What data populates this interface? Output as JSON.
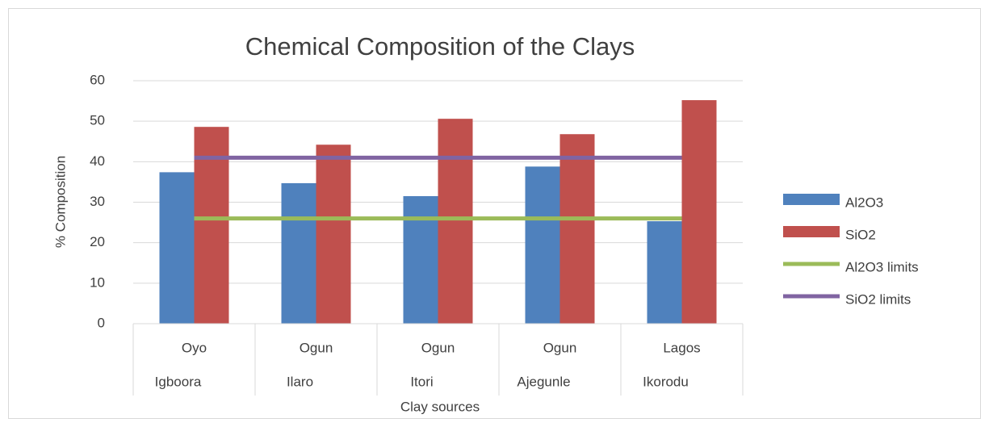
{
  "chart_data": {
    "type": "bar",
    "title": "Chemical Composition of the Clays",
    "x_label": "Clay sources",
    "y_label": "% Composition",
    "categories": [
      "Oyo",
      "Ogun",
      "Ogun",
      "Ogun",
      "Lagos"
    ],
    "subcategories": [
      "Igboora",
      "Ilaro",
      "Itori",
      "Ajegunle",
      "Ikorodu"
    ],
    "series": [
      {
        "name": "Al2O3",
        "type": "bar",
        "color": "#4f81bd",
        "values": [
          37.4,
          34.7,
          31.5,
          38.8,
          25.3
        ]
      },
      {
        "name": "SiO2",
        "type": "bar",
        "color": "#c0504d",
        "values": [
          48.6,
          44.2,
          50.6,
          46.8,
          55.2
        ]
      },
      {
        "name": "Al2O3 limits",
        "type": "line",
        "color": "#9bbb59",
        "values": [
          26,
          26,
          26,
          26,
          26
        ]
      },
      {
        "name": "SiO2 limits",
        "type": "line",
        "color": "#8064a2",
        "values": [
          41,
          41,
          41,
          41,
          41
        ]
      }
    ],
    "ylim": [
      0,
      60
    ],
    "yticks": [
      0,
      10,
      20,
      30,
      40,
      50,
      60
    ],
    "grid": true,
    "legend": "right"
  }
}
